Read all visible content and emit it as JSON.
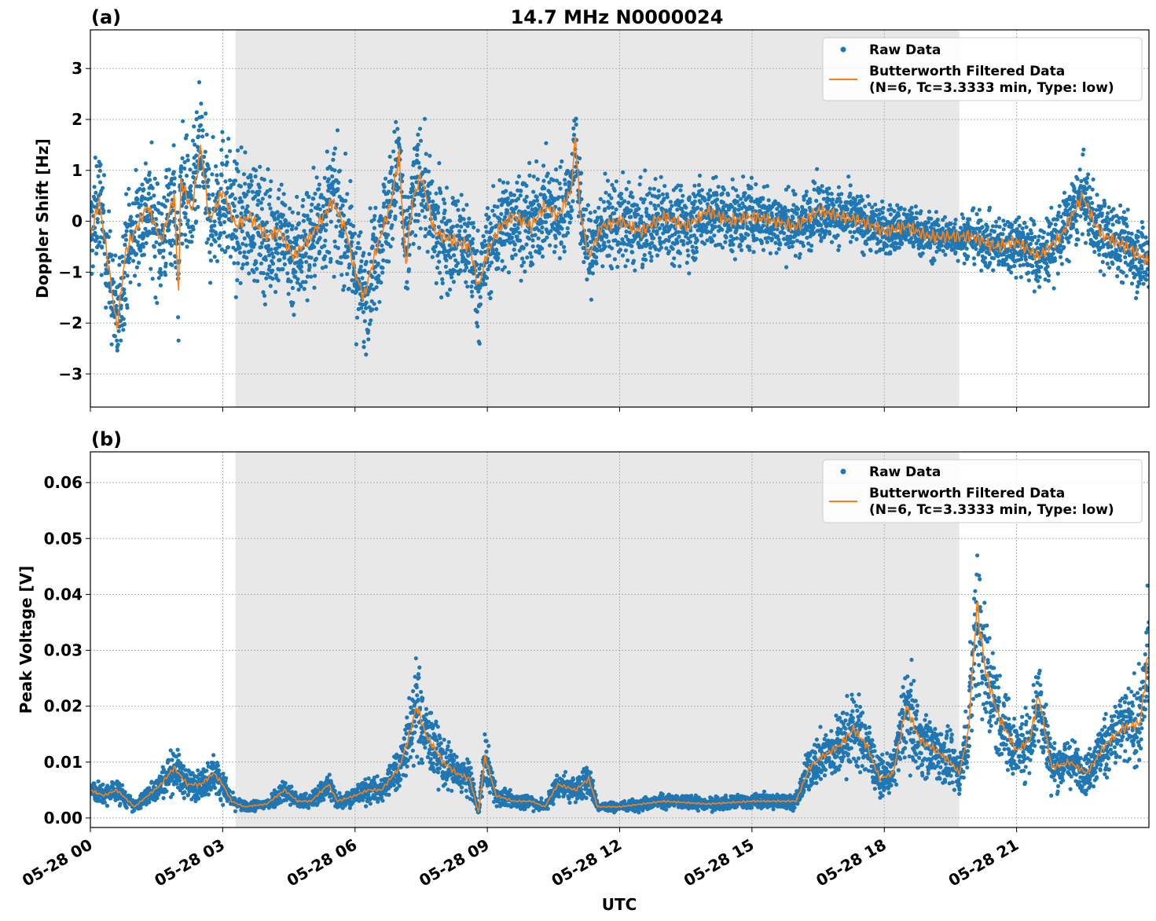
{
  "chart_data": [
    {
      "type": "scatter+line",
      "panel_label": "(a)",
      "title": "14.7 MHz N0000024",
      "xlabel": "",
      "ylabel": "Doppler Shift [Hz]",
      "xlim_hours": [
        0,
        24
      ],
      "ylim": [
        -3.65,
        3.76
      ],
      "yticks": [
        -3,
        -2,
        -1,
        0,
        1,
        2,
        3
      ],
      "ytick_labels": [
        "−3",
        "−2",
        "−1",
        "0",
        "1",
        "2",
        "3"
      ],
      "grid": true,
      "legend_position": "top-right",
      "shaded_interval_hours": [
        3.29,
        19.7
      ],
      "series": [
        {
          "name": "Raw Data",
          "kind": "scatter",
          "color": "#1f77b4",
          "spread_t": [
            0,
            3,
            12,
            16,
            19.5,
            22,
            24
          ],
          "spread": [
            1.0,
            1.2,
            0.8,
            0.6,
            0.4,
            0.7,
            0.7
          ]
        },
        {
          "name": "Butterworth Filtered Data\n(N=6, Tc=3.3333 min, Type: low)",
          "kind": "line",
          "color": "#ff7f0e",
          "t": [
            0,
            0.2,
            0.4,
            0.6,
            0.8,
            1,
            1.3,
            1.6,
            1.9,
            2.0,
            2.05,
            2.3,
            2.5,
            2.7,
            3,
            3.3,
            3.6,
            4,
            4.3,
            4.6,
            5,
            5.5,
            5.8,
            6,
            6.2,
            6.5,
            6.8,
            7,
            7.15,
            7.3,
            7.5,
            7.8,
            8,
            8.3,
            8.6,
            8.8,
            9,
            9.3,
            9.6,
            10,
            10.3,
            10.6,
            10.9,
            11,
            11.1,
            11.3,
            11.6,
            12,
            12.5,
            13,
            13.5,
            14,
            14.5,
            15,
            15.5,
            16,
            16.5,
            17,
            17.5,
            18,
            18.5,
            19,
            19.5,
            20,
            20.5,
            21,
            21.5,
            22,
            22.5,
            22.8,
            23,
            23.5,
            24
          ],
          "values": [
            -0.3,
            0.4,
            -0.8,
            -2.1,
            -0.6,
            -0.2,
            0.3,
            -0.4,
            0.5,
            -1.4,
            0.8,
            0.2,
            1.5,
            0.0,
            0.6,
            -0.1,
            0.1,
            -0.3,
            -0.2,
            -0.7,
            -0.3,
            0.4,
            -0.2,
            -1.0,
            -1.5,
            -0.5,
            0.3,
            1.3,
            -0.9,
            0.4,
            0.9,
            -0.2,
            -0.3,
            -0.4,
            -0.5,
            -1.3,
            -0.6,
            -0.1,
            0.1,
            -0.1,
            0.3,
            0.1,
            0.6,
            1.7,
            0.2,
            -0.7,
            -0.1,
            0.0,
            -0.2,
            0.1,
            -0.1,
            0.2,
            0.0,
            0.1,
            0.0,
            -0.1,
            0.2,
            0.1,
            0.0,
            -0.2,
            -0.1,
            -0.3,
            -0.3,
            -0.3,
            -0.5,
            -0.4,
            -0.7,
            -0.3,
            0.5,
            -0.1,
            -0.3,
            -0.5,
            -0.8
          ]
        }
      ]
    },
    {
      "type": "scatter+line",
      "panel_label": "(b)",
      "xlabel": "UTC",
      "ylabel": "Peak Voltage [V]",
      "xlim_hours": [
        0,
        24
      ],
      "ylim": [
        -0.0017,
        0.0655
      ],
      "yticks": [
        0,
        0.01,
        0.02,
        0.03,
        0.04,
        0.05,
        0.06
      ],
      "ytick_labels": [
        "0.00",
        "0.01",
        "0.02",
        "0.03",
        "0.04",
        "0.05",
        "0.06"
      ],
      "xtick_labels": [
        "05-28 00",
        "05-28 03",
        "05-28 06",
        "05-28 09",
        "05-28 12",
        "05-28 15",
        "05-28 18",
        "05-28 21"
      ],
      "xtick_hours": [
        0,
        3,
        6,
        9,
        12,
        15,
        18,
        21
      ],
      "grid": true,
      "legend_position": "top-right",
      "shaded_interval_hours": [
        3.29,
        19.7
      ],
      "series": [
        {
          "name": "Raw Data",
          "kind": "scatter",
          "color": "#1f77b4",
          "relative_spread": 0.35
        },
        {
          "name": "Butterworth Filtered Data\n(N=6, Tc=3.3333 min, Type: low)",
          "kind": "line",
          "color": "#ff7f0e",
          "t": [
            0,
            0.3,
            0.6,
            1,
            1.3,
            1.6,
            1.9,
            2.2,
            2.5,
            2.8,
            3.0,
            3.2,
            3.5,
            4,
            4.4,
            4.7,
            5,
            5.4,
            5.6,
            6,
            6.3,
            6.6,
            7,
            7.2,
            7.4,
            7.6,
            8,
            8.3,
            8.6,
            8.8,
            8.95,
            9.2,
            9.6,
            10,
            10.3,
            10.6,
            11,
            11.3,
            11.5,
            12,
            13,
            14,
            15,
            16,
            16.3,
            16.6,
            17,
            17.3,
            17.6,
            17.9,
            18.2,
            18.5,
            18.8,
            19.2,
            19.5,
            19.7,
            19.9,
            20.1,
            20.3,
            20.6,
            21,
            21.3,
            21.5,
            21.8,
            22.2,
            22.6,
            23,
            23.4,
            23.8,
            24
          ],
          "values": [
            0.005,
            0.004,
            0.005,
            0.002,
            0.004,
            0.006,
            0.009,
            0.006,
            0.006,
            0.008,
            0.006,
            0.003,
            0.002,
            0.0025,
            0.005,
            0.003,
            0.003,
            0.006,
            0.003,
            0.004,
            0.005,
            0.005,
            0.009,
            0.014,
            0.02,
            0.015,
            0.01,
            0.008,
            0.007,
            0.001,
            0.011,
            0.004,
            0.003,
            0.003,
            0.002,
            0.006,
            0.005,
            0.007,
            0.002,
            0.002,
            0.003,
            0.0025,
            0.003,
            0.003,
            0.009,
            0.011,
            0.013,
            0.016,
            0.013,
            0.007,
            0.008,
            0.02,
            0.014,
            0.012,
            0.01,
            0.008,
            0.015,
            0.038,
            0.026,
            0.018,
            0.012,
            0.014,
            0.022,
            0.009,
            0.01,
            0.008,
            0.013,
            0.016,
            0.017,
            0.03
          ]
        }
      ]
    }
  ]
}
